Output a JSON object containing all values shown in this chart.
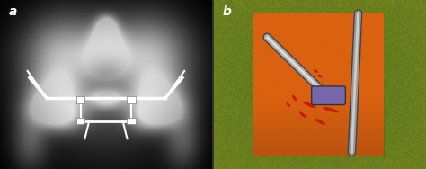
{
  "label_a": "a",
  "label_b": "b",
  "label_color": "white",
  "label_fontsize": 10,
  "bg_left": "#111111",
  "bg_right_outer": "#7a8a30",
  "orange_color": "#e06010",
  "figure_width": 4.74,
  "figure_height": 1.88,
  "dpi": 100
}
